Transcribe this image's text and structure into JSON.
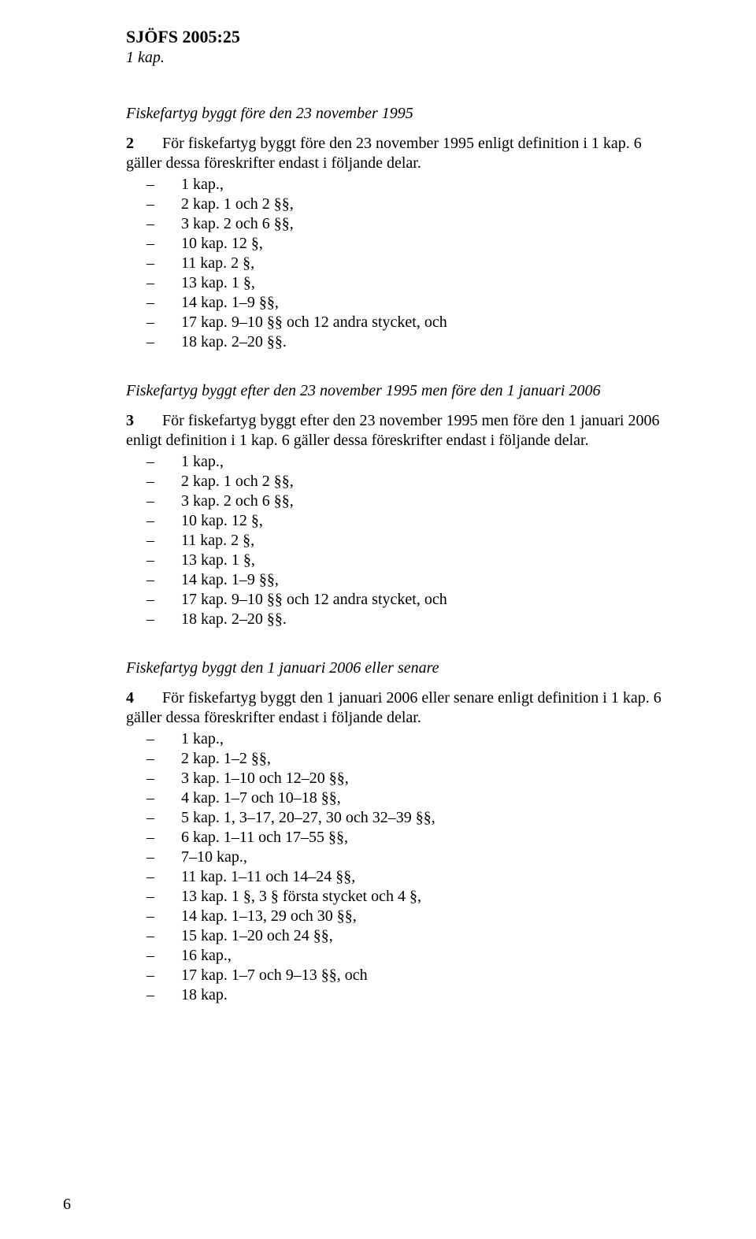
{
  "header": {
    "code": "SJÖFS 2005:25",
    "chapter": "1 kap."
  },
  "sections": [
    {
      "heading": "Fiskefartyg byggt före den 23 november 1995",
      "lead_number": "2",
      "intro": "För fiskefartyg byggt före den 23 november 1995 enligt definition i 1 kap. 6 gäller dessa föreskrifter endast i följande delar.",
      "items": [
        "1 kap.,",
        "2 kap. 1 och 2 §§,",
        "3 kap. 2 och 6 §§,",
        "10 kap. 12 §,",
        "11 kap. 2 §,",
        "13 kap. 1 §,",
        "14 kap. 1–9 §§,",
        "17 kap. 9–10 §§ och 12 andra stycket, och",
        "18 kap. 2–20 §§."
      ]
    },
    {
      "heading": "Fiskefartyg byggt efter den 23 november 1995 men före den 1 januari 2006",
      "lead_number": "3",
      "intro": "För fiskefartyg byggt efter den 23 november 1995 men före den 1 januari 2006 enligt definition i 1 kap. 6 gäller dessa föreskrifter endast i följande delar.",
      "items": [
        "1 kap.,",
        "2 kap. 1 och 2 §§,",
        "3 kap. 2 och 6 §§,",
        "10 kap. 12 §,",
        "11 kap. 2 §,",
        "13 kap. 1 §,",
        "14 kap. 1–9 §§,",
        "17 kap. 9–10 §§ och 12 andra stycket, och",
        "18 kap. 2–20 §§."
      ]
    },
    {
      "heading": "Fiskefartyg byggt den 1 januari 2006 eller senare",
      "lead_number": "4",
      "intro": "För fiskefartyg byggt den 1 januari 2006 eller senare enligt definition i 1 kap. 6 gäller dessa föreskrifter endast i följande delar.",
      "items": [
        "1 kap.,",
        "2 kap. 1–2 §§,",
        "3 kap. 1–10 och 12–20 §§,",
        "4 kap. 1–7 och 10–18 §§,",
        "5 kap. 1, 3–17, 20–27, 30 och 32–39 §§,",
        "6 kap. 1–11 och 17–55 §§,",
        "7–10 kap.,",
        "11 kap. 1–11 och 14–24 §§,",
        "13 kap. 1 §, 3 § första stycket och 4 §,",
        "14 kap. 1–13, 29 och 30 §§,",
        "15 kap. 1–20 och 24 §§,",
        "16 kap.,",
        "17 kap. 1–7 och 9–13 §§, och",
        "18 kap."
      ]
    }
  ],
  "page_number": "6"
}
